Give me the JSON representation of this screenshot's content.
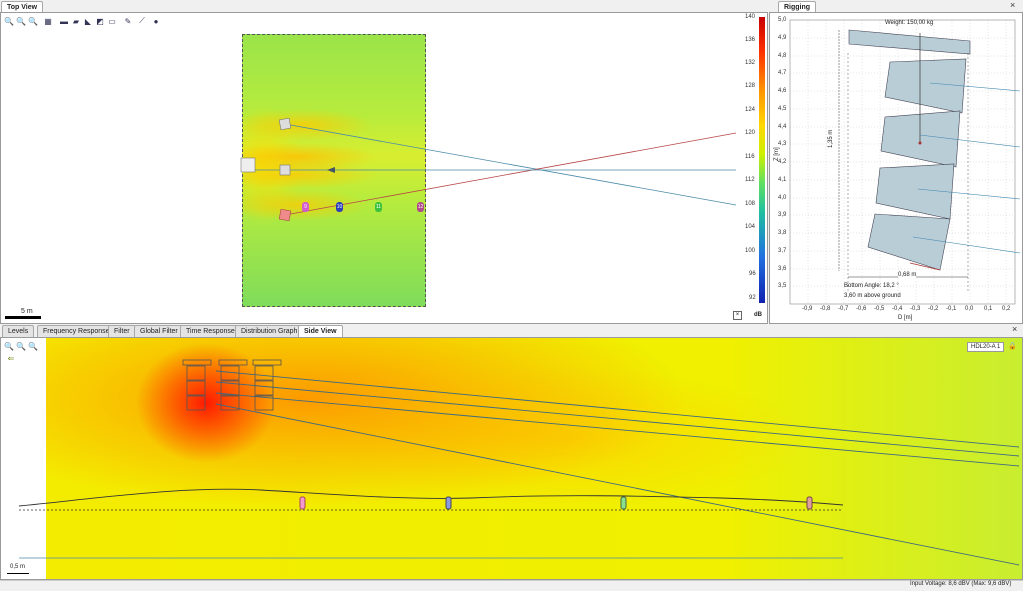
{
  "top_view": {
    "tab_label": "Top View",
    "scale_label": "5 m",
    "colorbar": {
      "ticks": [
        "140",
        "136",
        "132",
        "128",
        "124",
        "120",
        "116",
        "112",
        "108",
        "104",
        "100",
        "96",
        "92"
      ],
      "unit": "dB"
    },
    "markers": [
      "9",
      "10",
      "11",
      "12"
    ]
  },
  "rigging": {
    "tab_label": "Rigging",
    "weight_label": "Weight: 150,00 kg",
    "dim_vertical": "1,35 m",
    "dim_horizontal": "0,68 m",
    "bottom_angle": "Bottom Angle: 18,2 °",
    "above_ground": "3,60 m above ground",
    "y_ticks": [
      "5,0",
      "4,9",
      "4,8",
      "4,7",
      "4,6",
      "4,5",
      "4,4",
      "4,3",
      "4,2",
      "4,1",
      "4,0",
      "3,9",
      "3,8",
      "3,7",
      "3,6",
      "3,5"
    ],
    "x_ticks": [
      "-0,9",
      "-0,8",
      "-0,7",
      "-0,6",
      "-0,5",
      "-0,4",
      "-0,3",
      "-0,2",
      "-0,1",
      "0,0",
      "0,1",
      "0,2"
    ],
    "y_axis_label": "Z [m]",
    "x_axis_label": "D [m]"
  },
  "bottom_tabs": [
    {
      "label": "Levels",
      "active": false
    },
    {
      "label": "Frequency Response",
      "active": false
    },
    {
      "label": "Filter",
      "active": false
    },
    {
      "label": "Global Filter",
      "active": false
    },
    {
      "label": "Time Response",
      "active": false
    },
    {
      "label": "Distribution Graph",
      "active": false
    },
    {
      "label": "Side View",
      "active": true
    }
  ],
  "side_view": {
    "badge": "HDL20-A 1",
    "scale_label": "0,5 m"
  },
  "status_bar": {
    "text": "Input Voltage: 8,6 dBV (Max: 9,6 dBV)"
  },
  "icons": {
    "close": "×"
  }
}
